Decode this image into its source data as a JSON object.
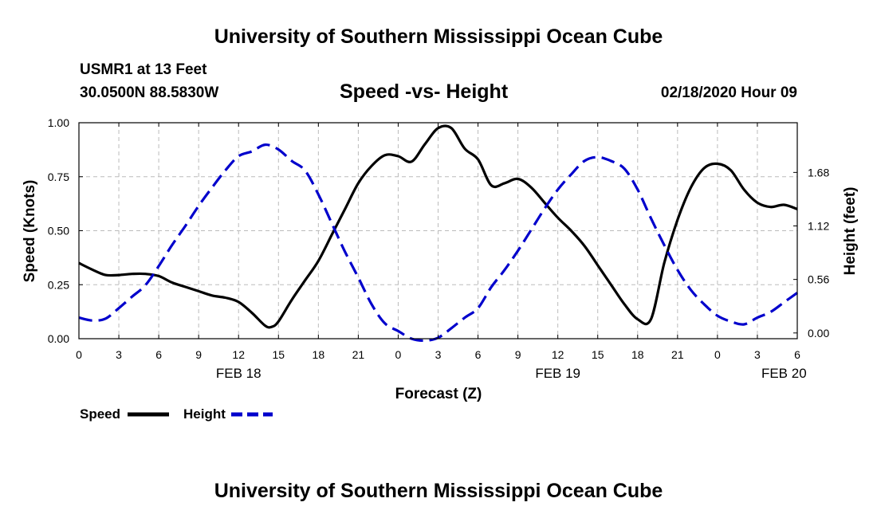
{
  "header": {
    "title_top": "University of Southern Mississippi Ocean Cube",
    "station": "USMR1 at 13 Feet",
    "location": "30.0500N 88.5830W",
    "subtitle": "Speed -vs- Height",
    "timestamp": "02/18/2020 Hour 09",
    "title_bottom": "University of Southern Mississippi Ocean Cube"
  },
  "colors": {
    "speed": "#000000",
    "height": "#0000cc",
    "grid": "#bbbbbb"
  },
  "chart_data": {
    "type": "line",
    "title": "Speed -vs- Height",
    "xlabel": "Forecast (Z)",
    "ylabel": "Speed (Knots)",
    "y2label": "Height (feet)",
    "xlim": [
      0,
      54
    ],
    "ylim": [
      0,
      1.0
    ],
    "y2lim": [
      -0.06,
      2.2
    ],
    "x_ticks": [
      0,
      3,
      6,
      9,
      12,
      15,
      18,
      21,
      24,
      27,
      30,
      33,
      36,
      39,
      42,
      45,
      48,
      51,
      54
    ],
    "x_tick_labels": [
      "0",
      "3",
      "6",
      "9",
      "12",
      "15",
      "18",
      "21",
      "0",
      "3",
      "6",
      "9",
      "12",
      "15",
      "18",
      "21",
      "0",
      "3",
      "6"
    ],
    "y_ticks": [
      0,
      0.25,
      0.5,
      0.75,
      1.0
    ],
    "y_tick_labels": [
      "0.00",
      "0.25",
      "0.50",
      "0.75",
      "1.00"
    ],
    "y2_ticks": [
      0,
      0.56,
      1.12,
      1.68
    ],
    "y2_tick_labels": [
      "0.00",
      "0.56",
      "1.12",
      "1.68"
    ],
    "date_labels": [
      {
        "x": 12,
        "label": "FEB 18"
      },
      {
        "x": 36,
        "label": "FEB 19"
      },
      {
        "x": 53,
        "label": "FEB 20"
      }
    ],
    "grid": true,
    "legend_position": "bottom-left",
    "series": [
      {
        "name": "Speed",
        "axis": "left",
        "style": "solid",
        "x": [
          0,
          1,
          2,
          3,
          4,
          5,
          6,
          7,
          8,
          9,
          10,
          11,
          12,
          13,
          14,
          14.5,
          15,
          16,
          17,
          18,
          19,
          20,
          21,
          22,
          23,
          24,
          25,
          26,
          27,
          28,
          29,
          30,
          31,
          32,
          33,
          34,
          35,
          36,
          37,
          38,
          39,
          40,
          41,
          42,
          43,
          44,
          45,
          46,
          47,
          48,
          49,
          50,
          51,
          52,
          53,
          54
        ],
        "values": [
          0.35,
          0.32,
          0.295,
          0.295,
          0.3,
          0.3,
          0.29,
          0.26,
          0.24,
          0.22,
          0.2,
          0.19,
          0.17,
          0.12,
          0.06,
          0.055,
          0.08,
          0.18,
          0.27,
          0.36,
          0.48,
          0.6,
          0.72,
          0.8,
          0.85,
          0.845,
          0.82,
          0.9,
          0.975,
          0.975,
          0.88,
          0.83,
          0.71,
          0.72,
          0.74,
          0.7,
          0.63,
          0.56,
          0.5,
          0.43,
          0.34,
          0.25,
          0.16,
          0.09,
          0.09,
          0.35,
          0.55,
          0.7,
          0.79,
          0.81,
          0.78,
          0.69,
          0.63,
          0.61,
          0.62,
          0.6
        ]
      },
      {
        "name": "Height",
        "axis": "right",
        "style": "dashed",
        "x": [
          0,
          1,
          2,
          3,
          4,
          5,
          6,
          7,
          8,
          9,
          10,
          11,
          12,
          13,
          14,
          15,
          16,
          17,
          18,
          19,
          20,
          21,
          22,
          23,
          24,
          25,
          26,
          27,
          28,
          29,
          30,
          31,
          32,
          33,
          34,
          35,
          36,
          37,
          38,
          39,
          40,
          41,
          42,
          43,
          44,
          45,
          46,
          47,
          48,
          49,
          50,
          51,
          52,
          53,
          54
        ],
        "values": [
          0.16,
          0.13,
          0.15,
          0.26,
          0.38,
          0.5,
          0.7,
          0.92,
          1.12,
          1.33,
          1.52,
          1.7,
          1.85,
          1.9,
          1.97,
          1.92,
          1.8,
          1.7,
          1.45,
          1.15,
          0.85,
          0.58,
          0.3,
          0.1,
          0.02,
          -0.06,
          -0.08,
          -0.05,
          0.05,
          0.16,
          0.26,
          0.48,
          0.66,
          0.86,
          1.08,
          1.3,
          1.5,
          1.66,
          1.8,
          1.84,
          1.8,
          1.72,
          1.5,
          1.2,
          0.92,
          0.66,
          0.45,
          0.3,
          0.18,
          0.12,
          0.09,
          0.16,
          0.22,
          0.32,
          0.42
        ]
      }
    ]
  }
}
